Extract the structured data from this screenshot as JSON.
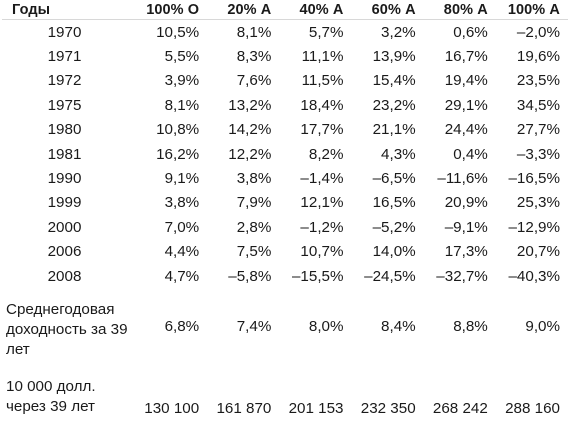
{
  "table": {
    "headers": [
      "Годы",
      "100% О",
      "20% А",
      "40% А",
      "60% А",
      "80% А",
      "100% А"
    ],
    "rows": [
      {
        "year": "1970",
        "values": [
          "10,5%",
          "8,1%",
          "5,7%",
          "3,2%",
          "0,6%",
          "–2,0%"
        ]
      },
      {
        "year": "1971",
        "values": [
          "5,5%",
          "8,3%",
          "11,1%",
          "13,9%",
          "16,7%",
          "19,6%"
        ]
      },
      {
        "year": "1972",
        "values": [
          "3,9%",
          "7,6%",
          "11,5%",
          "15,4%",
          "19,4%",
          "23,5%"
        ]
      },
      {
        "year": "1975",
        "values": [
          "8,1%",
          "13,2%",
          "18,4%",
          "23,2%",
          "29,1%",
          "34,5%"
        ]
      },
      {
        "year": "1980",
        "values": [
          "10,8%",
          "14,2%",
          "17,7%",
          "21,1%",
          "24,4%",
          "27,7%"
        ]
      },
      {
        "year": "1981",
        "values": [
          "16,2%",
          "12,2%",
          "8,2%",
          "4,3%",
          "0,4%",
          "–3,3%"
        ]
      },
      {
        "year": "1990",
        "values": [
          "9,1%",
          "3,8%",
          "–1,4%",
          "–6,5%",
          "–11,6%",
          "–16,5%"
        ]
      },
      {
        "year": "1999",
        "values": [
          "3,8%",
          "7,9%",
          "12,1%",
          "16,5%",
          "20,9%",
          "25,3%"
        ]
      },
      {
        "year": "2000",
        "values": [
          "7,0%",
          "2,8%",
          "–1,2%",
          "–5,2%",
          "–9,1%",
          "–12,9%"
        ]
      },
      {
        "year": "2006",
        "values": [
          "4,4%",
          "7,5%",
          "10,7%",
          "14,0%",
          "17,3%",
          "20,7%"
        ]
      },
      {
        "year": "2008",
        "values": [
          "4,7%",
          "–5,8%",
          "–15,5%",
          "–24,5%",
          "–32,7%",
          "–40,3%"
        ]
      }
    ],
    "avg": {
      "label": "Среднегодовая доходность за 39 лет",
      "values": [
        "6,8%",
        "7,4%",
        "8,0%",
        "8,4%",
        "8,8%",
        "9,0%"
      ]
    },
    "growth": {
      "label": "10 000 долл. через 39 лет",
      "values": [
        "130 100",
        "161 870",
        "201 153",
        "232 350",
        "268 242",
        "288 160"
      ]
    }
  }
}
